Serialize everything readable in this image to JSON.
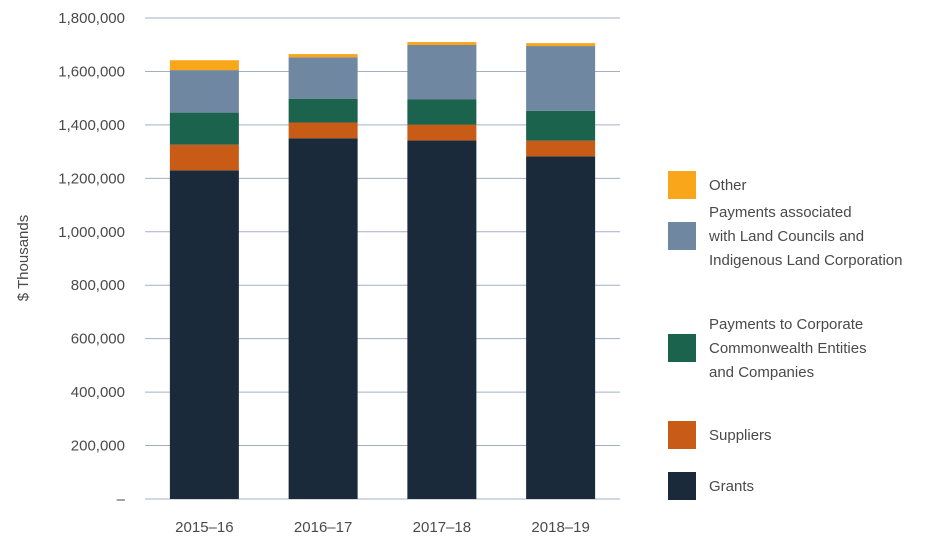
{
  "chart_data": {
    "type": "bar",
    "stacked": true,
    "title": "",
    "xlabel": "",
    "ylabel": "$ Thousands",
    "ylim": [
      0,
      1800000
    ],
    "yticks": [
      0,
      200000,
      400000,
      600000,
      800000,
      1000000,
      1200000,
      1400000,
      1600000,
      1800000
    ],
    "ytick_labels": [
      "–",
      "200,000",
      "400,000",
      "600,000",
      "800,000",
      "1,000,000",
      "1,200,000",
      "1,400,000",
      "1,600,000",
      "1,800,000"
    ],
    "grid": true,
    "legend_placement": "right",
    "categories": [
      "2015–16",
      "2016–17",
      "2017–18",
      "2018–19"
    ],
    "series": [
      {
        "name": "Grants",
        "color": "#1A2A3A",
        "values": [
          1230000,
          1350000,
          1342000,
          1282000
        ]
      },
      {
        "name": "Suppliers",
        "color": "#C85C17",
        "values": [
          96000,
          59000,
          59000,
          59000
        ]
      },
      {
        "name": "Payments to Corporate Commonwealth Entities and Companies",
        "legend_lines": [
          "Payments to Corporate",
          "Commonwealth Entities",
          "and Companies"
        ],
        "color": "#1C634D",
        "values": [
          120000,
          89000,
          94000,
          112000
        ]
      },
      {
        "name": "Payments associated with Land Councils and Indigenous Land Corporation",
        "legend_lines": [
          "Payments associated",
          "with Land Councils and",
          "Indigenous Land Corporation"
        ],
        "color": "#6F87A0",
        "values": [
          159000,
          155000,
          204000,
          242000
        ]
      },
      {
        "name": "Other",
        "color": "#F9A61A",
        "values": [
          37000,
          12000,
          11000,
          11000
        ]
      }
    ]
  }
}
